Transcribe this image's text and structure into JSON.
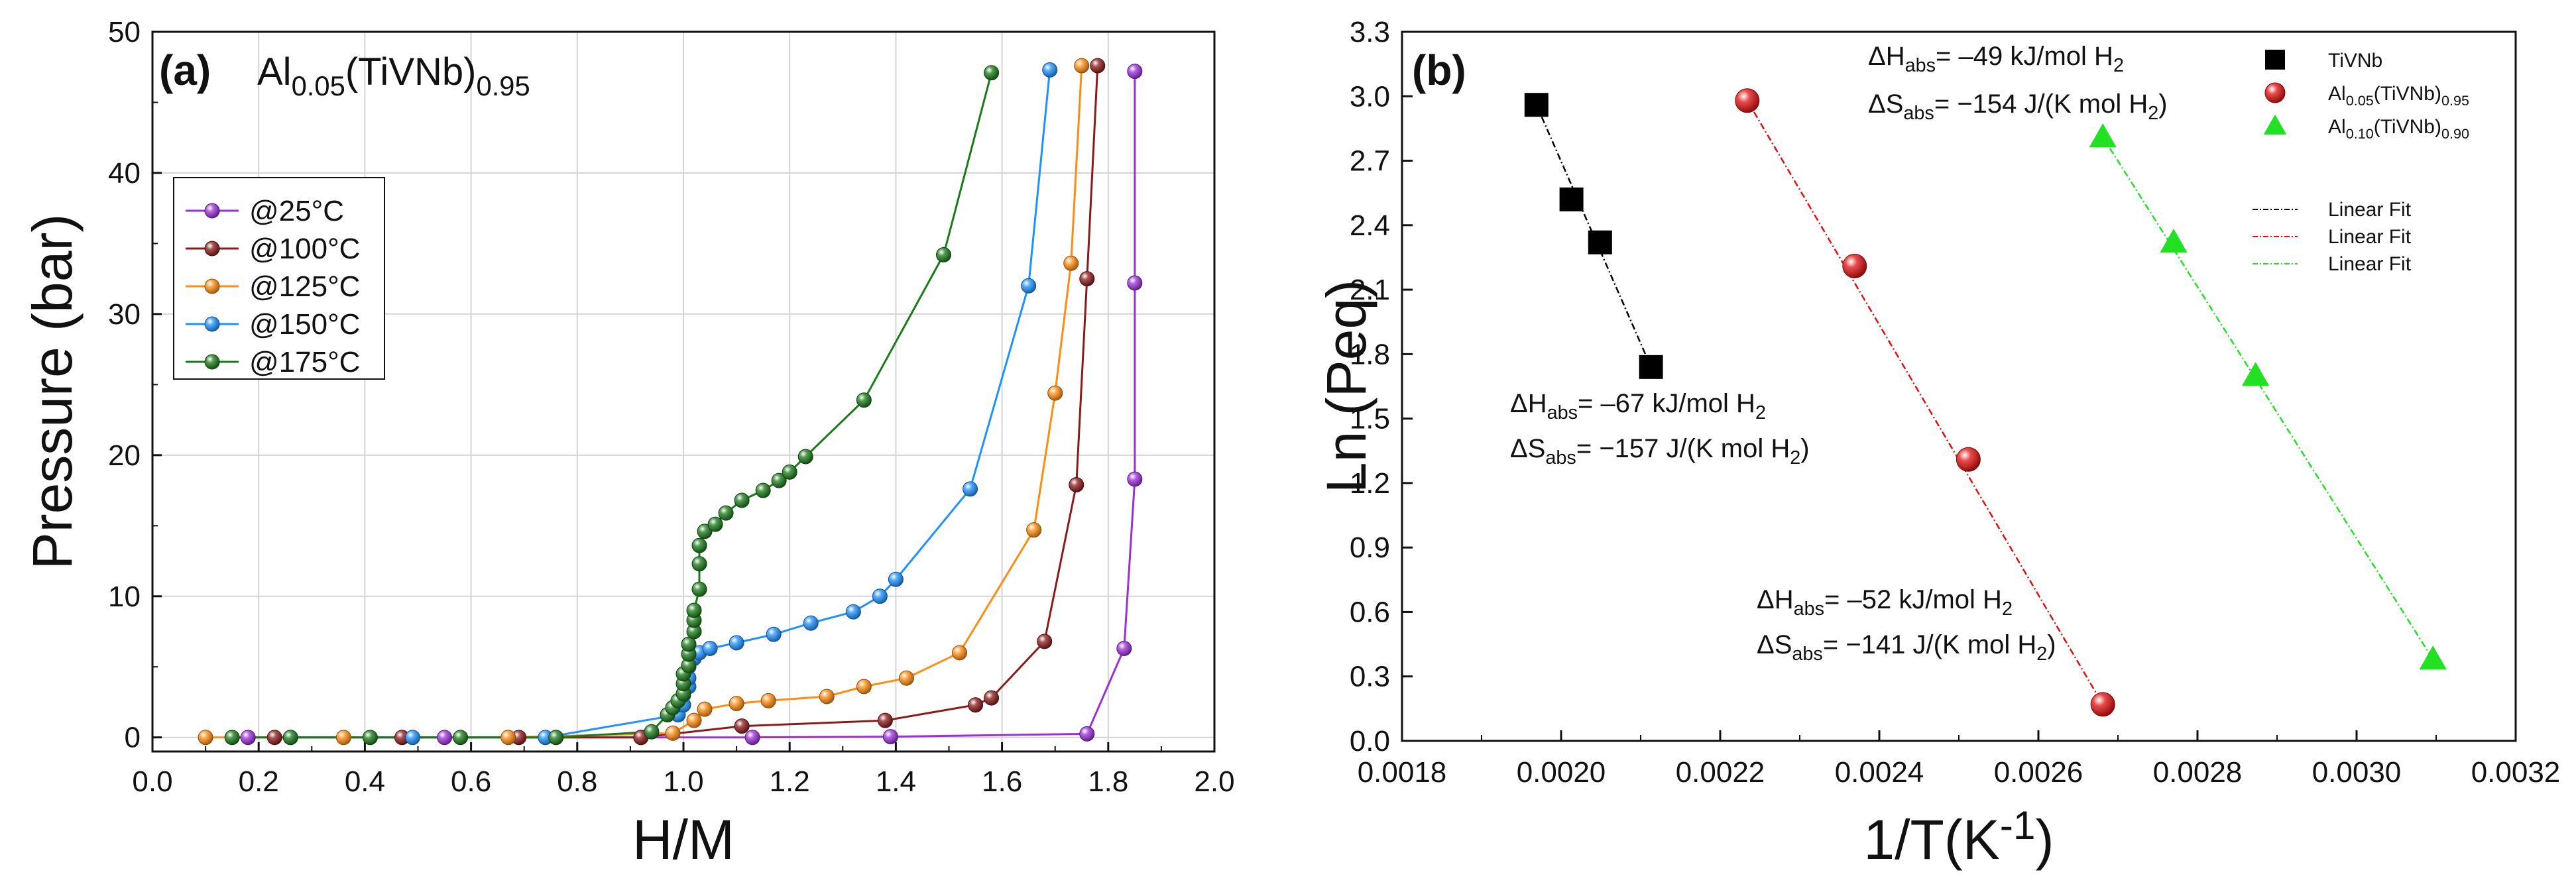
{
  "chart_data": [
    {
      "panel": "(a)",
      "type": "line",
      "title": "Al0.05(TiVNb)0.95",
      "title_parts": {
        "base": "Al",
        "sub1": "0.05",
        "mid": "(TiVNb)",
        "sub2": "0.95"
      },
      "xlabel": "H/M",
      "ylabel": "Pressure (bar)",
      "xlim": [
        0.0,
        2.0
      ],
      "ylim": [
        -1,
        50
      ],
      "xticks": [
        "0.0",
        "0.2",
        "0.4",
        "0.6",
        "0.8",
        "1.0",
        "1.2",
        "1.4",
        "1.6",
        "1.8",
        "2.0"
      ],
      "yticks": [
        "0",
        "10",
        "20",
        "30",
        "40",
        "50"
      ],
      "grid": true,
      "legend_position": "middle-left",
      "series": [
        {
          "name": "@25°C",
          "color": "#9b30d8",
          "x": [
            0.18,
            0.55,
            0.92,
            1.13,
            1.39,
            1.76,
            1.83,
            1.85,
            1.85,
            1.85
          ],
          "y": [
            0.0,
            0.0,
            0.0,
            0.0,
            0.05,
            0.25,
            6.3,
            18.3,
            32.2,
            47.2
          ]
        },
        {
          "name": "@100°C",
          "color": "#8b1a1a",
          "x": [
            0.23,
            0.47,
            0.69,
            0.92,
            1.11,
            1.38,
            1.55,
            1.58,
            1.68,
            1.74,
            1.76,
            1.78
          ],
          "y": [
            0.0,
            0.0,
            0.0,
            0.0,
            0.8,
            1.2,
            2.3,
            2.8,
            6.8,
            17.9,
            32.5,
            47.6
          ]
        },
        {
          "name": "@125°C",
          "color": "#ff8c10",
          "x": [
            0.1,
            0.36,
            0.67,
            0.98,
            1.02,
            1.04,
            1.1,
            1.16,
            1.27,
            1.34,
            1.42,
            1.52,
            1.66,
            1.7,
            1.73,
            1.75
          ],
          "y": [
            0.0,
            0.0,
            0.0,
            0.3,
            1.2,
            2.0,
            2.4,
            2.6,
            2.9,
            3.6,
            4.2,
            6.0,
            14.7,
            24.4,
            33.6,
            47.6
          ]
        },
        {
          "name": "@150°C",
          "color": "#1e90ff",
          "x": [
            0.26,
            0.49,
            0.74,
            0.99,
            1.0,
            1.0,
            1.01,
            1.01,
            1.01,
            1.02,
            1.03,
            1.05,
            1.1,
            1.17,
            1.24,
            1.32,
            1.37,
            1.4,
            1.54,
            1.65,
            1.69
          ],
          "y": [
            0.0,
            0.0,
            0.0,
            1.6,
            2.3,
            3.0,
            3.6,
            4.2,
            5.0,
            5.6,
            6.0,
            6.3,
            6.7,
            7.3,
            8.1,
            8.9,
            10.0,
            11.2,
            17.6,
            32.0,
            47.3
          ]
        },
        {
          "name": "@175°C",
          "color": "#1a7a1a",
          "x": [
            0.15,
            0.26,
            0.41,
            0.58,
            0.76,
            0.94,
            0.97,
            0.98,
            0.99,
            1.0,
            1.0,
            1.0,
            1.01,
            1.01,
            1.01,
            1.02,
            1.02,
            1.02,
            1.03,
            1.03,
            1.03,
            1.04,
            1.06,
            1.08,
            1.11,
            1.15,
            1.18,
            1.2,
            1.23,
            1.34,
            1.49,
            1.58
          ],
          "y": [
            0.0,
            0.0,
            0.0,
            0.0,
            0.0,
            0.4,
            1.6,
            2.1,
            2.6,
            3.1,
            3.8,
            4.5,
            5.1,
            5.9,
            6.6,
            7.5,
            8.3,
            9.0,
            10.5,
            12.3,
            13.6,
            14.6,
            15.1,
            15.9,
            16.8,
            17.5,
            18.2,
            18.8,
            19.9,
            23.9,
            34.2,
            47.1
          ]
        }
      ]
    },
    {
      "panel": "(b)",
      "type": "scatter",
      "xlabel_base": "1/T(K",
      "xlabel_sup": "-1",
      "xlabel_end": ")",
      "ylabel": "Ln (Peq)",
      "xlim": [
        0.0018,
        0.0032
      ],
      "ylim": [
        0.0,
        3.3
      ],
      "xticks": [
        "0.0018",
        "0.0020",
        "0.0022",
        "0.0024",
        "0.0026",
        "0.0028",
        "0.0030",
        "0.0032"
      ],
      "yticks": [
        "0.0",
        "0.3",
        "0.6",
        "0.9",
        "1.2",
        "1.5",
        "1.8",
        "2.1",
        "2.4",
        "2.7",
        "3.0",
        "3.3"
      ],
      "grid": false,
      "legend_position": "top-right",
      "series": [
        {
          "name": "TiVNb",
          "legend": {
            "base": "TiVNb"
          },
          "marker": "square",
          "color": "#000000",
          "x": [
            0.001969,
            0.002013,
            0.002049,
            0.002113
          ],
          "y": [
            2.96,
            2.52,
            2.32,
            1.74
          ]
        },
        {
          "name": "Al0.05(TiVNb)0.95",
          "legend": {
            "base": "Al",
            "sub1": "0.05",
            "mid": "(TiVNb)",
            "sub2": "0.95"
          },
          "marker": "sphere",
          "color": "#e01010",
          "x": [
            0.002234,
            0.002369,
            0.002512,
            0.002681
          ],
          "y": [
            2.98,
            2.21,
            1.31,
            0.17
          ]
        },
        {
          "name": "Al0.10(TiVNb)0.90",
          "legend": {
            "base": "Al",
            "sub1": "0.10",
            "mid": "(TiVNb)",
            "sub2": "0.90"
          },
          "marker": "triangle",
          "color": "#22e022",
          "x": [
            0.002681,
            0.00277,
            0.002873,
            0.003096
          ],
          "y": [
            2.81,
            2.32,
            1.7,
            0.38
          ]
        }
      ],
      "fits": [
        {
          "name": "Linear Fit",
          "color": "#000000",
          "x": [
            0.001969,
            0.002113
          ],
          "y": [
            2.96,
            1.74
          ]
        },
        {
          "name": "Linear Fit",
          "color": "#e01010",
          "x": [
            0.002234,
            0.002681
          ],
          "y": [
            2.98,
            0.17
          ]
        },
        {
          "name": "Linear Fit",
          "color": "#22e022",
          "x": [
            0.002681,
            0.003096
          ],
          "y": [
            2.81,
            0.38
          ]
        }
      ],
      "annotations": [
        {
          "id": "tivnb",
          "dh_val": "= –67 kJ/mol H",
          "ds_val": "= −157 J/(K mol H"
        },
        {
          "id": "al005",
          "dh_val": "= –52  kJ/mol H",
          "ds_val": "= −141 J/(K mol H"
        },
        {
          "id": "al010",
          "dh_val": "= –49  kJ/mol H",
          "ds_val": "= −154 J/(K mol H"
        }
      ],
      "annotation_parts": {
        "dh": "ΔH",
        "ds": "ΔS",
        "abs": "abs",
        "h2_sub": "2",
        "close": ")"
      }
    }
  ]
}
